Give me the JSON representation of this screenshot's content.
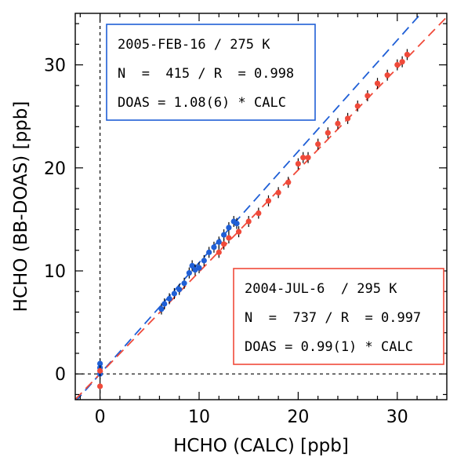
{
  "chart_data": {
    "type": "scatter",
    "xlabel": "HCHO (CALC) [ppb]",
    "ylabel": "HCHO (BB-DOAS) [ppb]",
    "xlim": [
      -2.5,
      35
    ],
    "ylim": [
      -2.5,
      35
    ],
    "x_ticks": [
      0,
      10,
      20,
      30
    ],
    "y_ticks": [
      0,
      10,
      20,
      30
    ],
    "x_tick_labels": [
      "0",
      "10",
      "20",
      "30"
    ],
    "y_tick_labels": [
      "0",
      "10",
      "20",
      "30"
    ],
    "grid": false,
    "zero_lines": {
      "x": 0,
      "y": 0,
      "style": "dashed",
      "color": "#000000"
    },
    "series": [
      {
        "color": "#1f5fd6",
        "fit_slope": 1.08,
        "annotation": [
          "2005-FEB-16 / 275 K",
          "N  =  415 / R  = 0.998",
          "DOAS = 1.08(6) * CALC"
        ],
        "annotation_position": "top-left",
        "x": [
          0.0,
          0.0,
          0.0,
          6.2,
          6.5,
          7.0,
          7.5,
          8.0,
          8.5,
          9.0,
          9.3,
          9.6,
          10.0,
          10.5,
          11.0,
          11.5,
          12.0,
          12.5,
          13.0,
          13.5,
          13.8
        ],
        "y": [
          0.0,
          0.6,
          1.0,
          6.3,
          6.8,
          7.3,
          7.8,
          8.2,
          8.8,
          9.8,
          10.5,
          10.1,
          10.3,
          11.0,
          11.8,
          12.3,
          12.8,
          13.5,
          14.2,
          14.8,
          14.6
        ]
      },
      {
        "color": "#f04a3a",
        "fit_slope": 0.99,
        "annotation": [
          "2004-JUL-6  / 295 K",
          "N  =  737 / R  = 0.997",
          "DOAS = 0.99(1) * CALC"
        ],
        "annotation_position": "bottom-right",
        "x": [
          0.0,
          0.0,
          12.0,
          12.5,
          13.0,
          14.0,
          15.0,
          16.0,
          17.0,
          18.0,
          19.0,
          20.0,
          20.5,
          21.0,
          22.0,
          23.0,
          24.0,
          25.0,
          26.0,
          27.0,
          28.0,
          29.0,
          30.0,
          30.5,
          31.0
        ],
        "y": [
          -1.2,
          0.3,
          11.8,
          12.6,
          13.2,
          13.8,
          14.8,
          15.6,
          16.8,
          17.6,
          18.6,
          20.4,
          21.0,
          21.0,
          22.3,
          23.4,
          24.3,
          24.8,
          26.0,
          27.0,
          28.2,
          29.0,
          30.0,
          30.3,
          31.0
        ]
      }
    ]
  }
}
